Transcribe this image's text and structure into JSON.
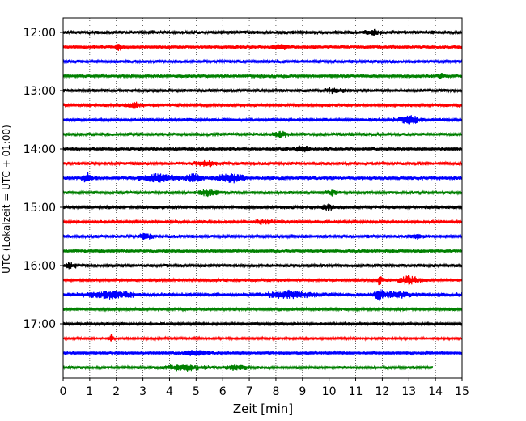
{
  "chart_data": {
    "type": "line",
    "title": "",
    "xlabel": "Zeit  [min]",
    "ylabel": "UTC (Lokalzeit = UTC + 01:00)",
    "xlim": [
      0,
      15
    ],
    "xticks": [
      "0",
      "1",
      "2",
      "3",
      "4",
      "5",
      "6",
      "7",
      "8",
      "9",
      "10",
      "11",
      "12",
      "13",
      "14",
      "15"
    ],
    "ytick_labels": [
      "12:00",
      "13:00",
      "14:00",
      "15:00",
      "16:00",
      "17:00"
    ],
    "grid": "vertical dotted at each minute",
    "trace_colors": [
      "#000000",
      "#ff0000",
      "#0000ff",
      "#008000"
    ],
    "series": [
      {
        "start": "12:00",
        "end_min": 15,
        "amplitude": 0.4,
        "events": [
          {
            "t": 11.6,
            "a": 0.5,
            "w": 0.3
          }
        ]
      },
      {
        "start": "12:15",
        "end_min": 15,
        "amplitude": 0.35,
        "events": [
          {
            "t": 2.1,
            "a": 0.6,
            "w": 0.15
          },
          {
            "t": 8.2,
            "a": 0.5,
            "w": 0.3
          }
        ]
      },
      {
        "start": "12:30",
        "end_min": 15,
        "amplitude": 0.35,
        "events": []
      },
      {
        "start": "12:45",
        "end_min": 15,
        "amplitude": 0.35,
        "events": [
          {
            "t": 14.2,
            "a": 0.6,
            "w": 0.1
          }
        ]
      },
      {
        "start": "13:00",
        "end_min": 15,
        "amplitude": 0.35,
        "events": [
          {
            "t": 10.2,
            "a": 0.5,
            "w": 0.3
          }
        ]
      },
      {
        "start": "13:15",
        "end_min": 15,
        "amplitude": 0.35,
        "events": [
          {
            "t": 2.7,
            "a": 0.5,
            "w": 0.3
          }
        ]
      },
      {
        "start": "13:30",
        "end_min": 15,
        "amplitude": 0.35,
        "events": [
          {
            "t": 13.0,
            "a": 0.8,
            "w": 0.4
          }
        ]
      },
      {
        "start": "13:45",
        "end_min": 15,
        "amplitude": 0.35,
        "events": [
          {
            "t": 8.2,
            "a": 0.5,
            "w": 0.3
          }
        ]
      },
      {
        "start": "14:00",
        "end_min": 15,
        "amplitude": 0.35,
        "events": [
          {
            "t": 9.0,
            "a": 0.5,
            "w": 0.3
          }
        ]
      },
      {
        "start": "14:15",
        "end_min": 15,
        "amplitude": 0.35,
        "events": [
          {
            "t": 5.4,
            "a": 0.5,
            "w": 0.4
          }
        ]
      },
      {
        "start": "14:30",
        "end_min": 15,
        "amplitude": 0.4,
        "events": [
          {
            "t": 0.9,
            "a": 0.9,
            "w": 0.15
          },
          {
            "t": 3.6,
            "a": 0.8,
            "w": 0.6
          },
          {
            "t": 4.9,
            "a": 0.9,
            "w": 0.3
          },
          {
            "t": 6.3,
            "a": 0.8,
            "w": 0.5
          }
        ]
      },
      {
        "start": "14:45",
        "end_min": 15,
        "amplitude": 0.35,
        "events": [
          {
            "t": 5.5,
            "a": 0.6,
            "w": 0.4
          },
          {
            "t": 10.1,
            "a": 0.5,
            "w": 0.2
          }
        ]
      },
      {
        "start": "15:00",
        "end_min": 15,
        "amplitude": 0.35,
        "events": [
          {
            "t": 10.0,
            "a": 0.5,
            "w": 0.3
          }
        ]
      },
      {
        "start": "15:15",
        "end_min": 15,
        "amplitude": 0.35,
        "events": [
          {
            "t": 7.6,
            "a": 0.5,
            "w": 0.4
          }
        ]
      },
      {
        "start": "15:30",
        "end_min": 15,
        "amplitude": 0.35,
        "events": [
          {
            "t": 3.1,
            "a": 0.5,
            "w": 0.3
          },
          {
            "t": 13.3,
            "a": 0.5,
            "w": 0.2
          }
        ]
      },
      {
        "start": "15:45",
        "end_min": 15,
        "amplitude": 0.35,
        "events": []
      },
      {
        "start": "16:00",
        "end_min": 15,
        "amplitude": 0.35,
        "events": [
          {
            "t": 0.3,
            "a": 0.5,
            "w": 0.2
          }
        ]
      },
      {
        "start": "16:15",
        "end_min": 15,
        "amplitude": 0.35,
        "events": [
          {
            "t": 11.9,
            "a": 0.9,
            "w": 0.1
          },
          {
            "t": 13.0,
            "a": 0.8,
            "w": 0.4
          }
        ]
      },
      {
        "start": "16:30",
        "end_min": 15,
        "amplitude": 0.4,
        "events": [
          {
            "t": 1.8,
            "a": 0.7,
            "w": 0.8
          },
          {
            "t": 8.5,
            "a": 0.7,
            "w": 0.8
          },
          {
            "t": 11.9,
            "a": 1.0,
            "w": 0.15
          },
          {
            "t": 12.5,
            "a": 0.6,
            "w": 0.5
          }
        ]
      },
      {
        "start": "16:45",
        "end_min": 15,
        "amplitude": 0.3,
        "events": []
      },
      {
        "start": "17:00",
        "end_min": 15,
        "amplitude": 0.3,
        "events": []
      },
      {
        "start": "17:15",
        "end_min": 15,
        "amplitude": 0.25,
        "events": [
          {
            "t": 1.8,
            "a": 1.0,
            "w": 0.08
          }
        ]
      },
      {
        "start": "17:30",
        "end_min": 15,
        "amplitude": 0.3,
        "events": [
          {
            "t": 5.0,
            "a": 0.5,
            "w": 0.6
          }
        ]
      },
      {
        "start": "17:45",
        "end_min": 13.9,
        "amplitude": 0.3,
        "events": [
          {
            "t": 4.5,
            "a": 0.6,
            "w": 0.8
          },
          {
            "t": 6.5,
            "a": 0.5,
            "w": 0.4
          }
        ]
      }
    ]
  }
}
